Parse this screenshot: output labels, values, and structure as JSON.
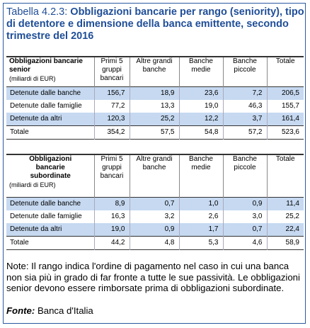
{
  "title": {
    "number": "Tabella 4.2.3:",
    "text": "Obbligazioni bancarie per rango (seniority), tipo di detentore e dimensione della banca emittente, secondo trimestre del 2016"
  },
  "columns": [
    "Primi 5 gruppi bancari",
    "Altre grandi banche",
    "Banche medie",
    "Banche piccole",
    "Totale"
  ],
  "table_senior": {
    "header": "Obbligazioni bancarie senior",
    "unit": "(miliardi di EUR)",
    "rows": [
      {
        "label": "Detenute dalle banche",
        "values": [
          "156,7",
          "18,9",
          "23,6",
          "7,2",
          "206,5"
        ]
      },
      {
        "label": "Detenute dalle famiglie",
        "values": [
          "77,2",
          "13,3",
          "19,0",
          "46,3",
          "155,7"
        ]
      },
      {
        "label": "Detenute da altri",
        "values": [
          "120,3",
          "25,2",
          "12,2",
          "3,7",
          "161,4"
        ]
      },
      {
        "label": "Totale",
        "values": [
          "354,2",
          "57,5",
          "54,8",
          "57,2",
          "523,6"
        ]
      }
    ]
  },
  "table_subordinate": {
    "header": "Obbligazioni bancarie subordinate",
    "unit": "(miliardi di EUR)",
    "rows": [
      {
        "label": "Detenute dalle banche",
        "values": [
          "8,9",
          "0,7",
          "1,0",
          "0,9",
          "11,4"
        ]
      },
      {
        "label": "Detenute dalle famiglie",
        "values": [
          "16,3",
          "3,2",
          "2,6",
          "3,0",
          "25,2"
        ]
      },
      {
        "label": "Detenute da altri",
        "values": [
          "19,0",
          "0,9",
          "1,7",
          "0,7",
          "22,4"
        ]
      },
      {
        "label": "Totale",
        "values": [
          "44,2",
          "4,8",
          "5,3",
          "4,6",
          "58,9"
        ]
      }
    ]
  },
  "note": "Note: Il rango indica l'ordine di pagamento nel caso in cui una banca non sia più in grado di far fronte a tutte le sue passività. Le obbligazioni senior devono essere rimborsate prima di obbligazioni subordinate.",
  "source": {
    "label": "Fonte:",
    "text": " Banca d'Italia"
  }
}
